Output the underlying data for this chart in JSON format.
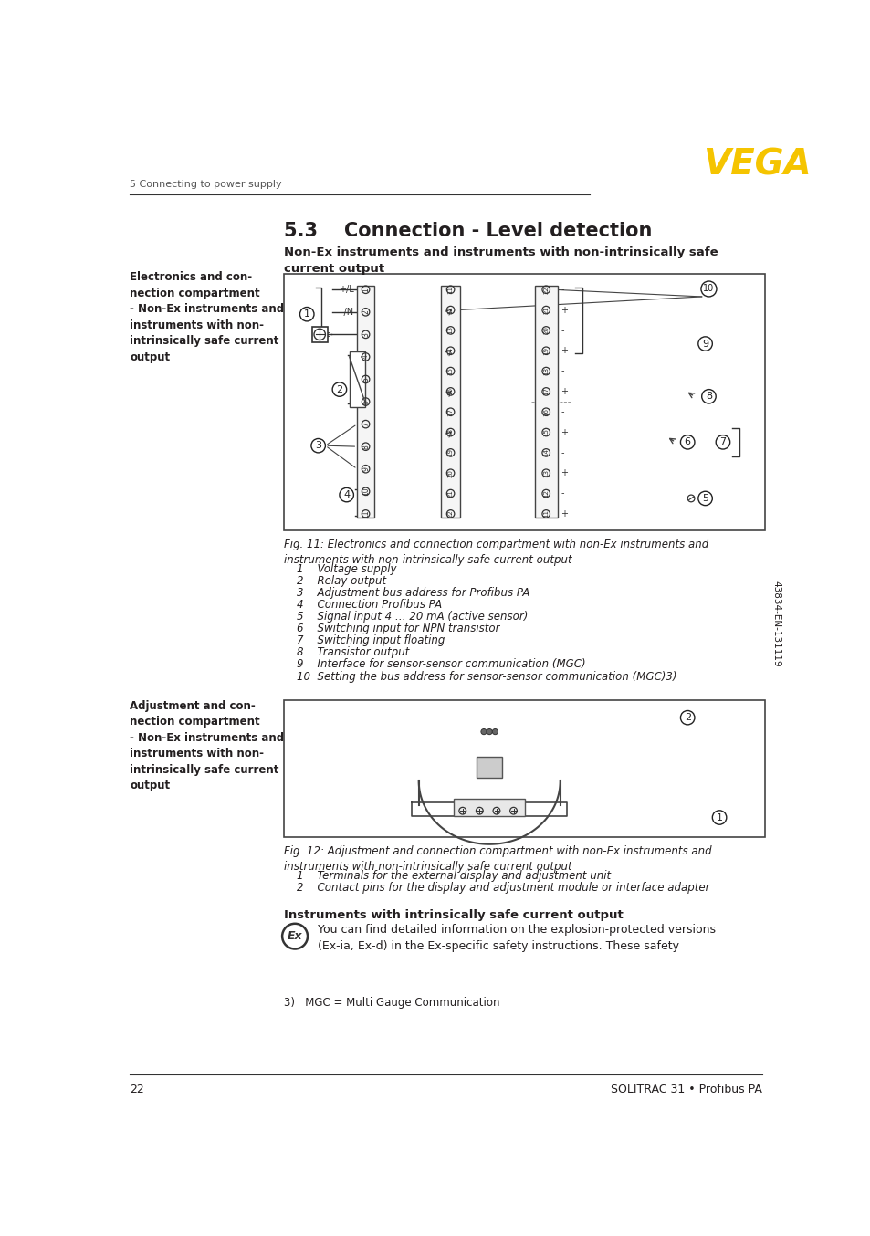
{
  "page_header_left": "5 Connecting to power supply",
  "page_header_right": "VEGA",
  "vega_color": "#F5C400",
  "section_title": "5.3    Connection - Level detection",
  "subsection_bold": "Non-Ex instruments and instruments with non-intrinsically safe\ncurrent output",
  "left_label_1_bold": "Electronics and con-\nnection compartment\n- Non-Ex instruments and\ninstruments with non-\nintrinsically safe current\noutput",
  "fig11_caption": "Fig. 11: Electronics and connection compartment with non-Ex instruments and\ninstruments with non-intrinsically safe current output",
  "fig11_items": [
    "1    Voltage supply",
    "2    Relay output",
    "3    Adjustment bus address for Profibus PA",
    "4    Connection Profibus PA",
    "5    Signal input 4 … 20 mA (active sensor)",
    "6    Switching input for NPN transistor",
    "7    Switching input floating",
    "8    Transistor output",
    "9    Interface for sensor-sensor communication (MGC)",
    "10  Setting the bus address for sensor-sensor communication (MGC)3)"
  ],
  "left_label_2_bold": "Adjustment and con-\nnection compartment\n- Non-Ex instruments and\ninstruments with non-\nintrinsically safe current\noutput",
  "fig12_caption": "Fig. 12: Adjustment and connection compartment with non-Ex instruments and\ninstruments with non-intrinsically safe current output",
  "fig12_items": [
    "1    Terminals for the external display and adjustment unit",
    "2    Contact pins for the display and adjustment module or interface adapter"
  ],
  "intrinsic_title": "Instruments with intrinsically safe current output",
  "intrinsic_text": "You can find detailed information on the explosion-protected versions\n(Ex-ia, Ex-d) in the Ex-specific safety instructions. These safety",
  "footnote": "3)   MGC = Multi Gauge Communication",
  "sidebar_text": "43834-EN-131119",
  "page_number": "22",
  "footer_right": "SOLITRAC 31 • Profibus PA",
  "bg_color": "#ffffff",
  "text_color": "#231f20",
  "line_color": "#231f20"
}
